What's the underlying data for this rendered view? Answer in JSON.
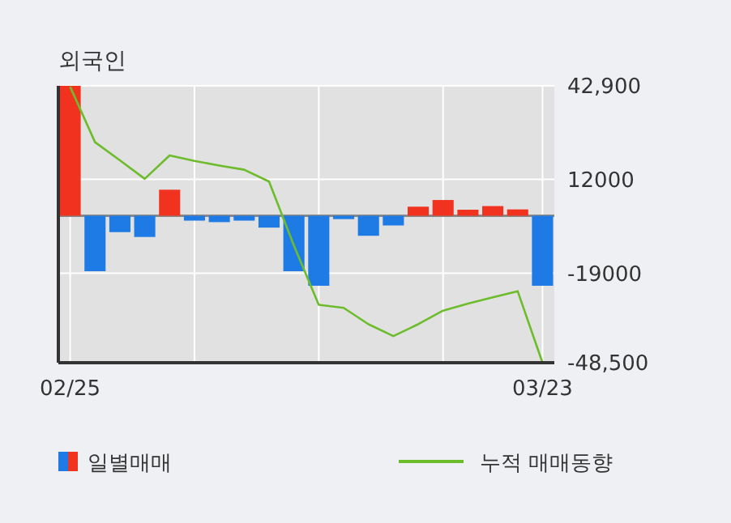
{
  "chart_data": {
    "type": "bar",
    "title": "외국인",
    "categories": [
      "02/25",
      null,
      null,
      null,
      null,
      null,
      null,
      null,
      null,
      null,
      null,
      null,
      null,
      null,
      null,
      null,
      null,
      null,
      null,
      "03/23"
    ],
    "series": [
      {
        "name": "일별매매",
        "colors": [
          "#f0321e",
          "#1e7be6",
          "#1e7be6",
          "#1e7be6",
          "#f0321e",
          "#1e7be6",
          "#1e7be6",
          "#1e7be6",
          "#1e7be6",
          "#1e7be6",
          "#1e7be6",
          "#1e7be6",
          "#1e7be6",
          "#1e7be6",
          "#f0321e",
          "#f0321e",
          "#f0321e",
          "#f0321e",
          "#f0321e",
          "#1e7be6"
        ],
        "values": [
          42900,
          -18300,
          -5400,
          -7000,
          8600,
          -1600,
          -2100,
          -1600,
          -3900,
          -18300,
          -23100,
          -1100,
          -6600,
          -3200,
          3000,
          5200,
          2000,
          3200,
          2100,
          -23100
        ]
      },
      {
        "name": "누적 매매동향",
        "type": "line",
        "color": "#6cbc2c",
        "values": [
          42600,
          24300,
          18300,
          12200,
          19900,
          18100,
          16600,
          15200,
          11300,
          -9800,
          -29400,
          -30400,
          -35800,
          -39700,
          -35800,
          -31300,
          -29000,
          -26900,
          -24900,
          -48500
        ]
      }
    ],
    "ylim": [
      -48500,
      42900
    ],
    "yticks": [
      {
        "value": 42900,
        "label": "42,900"
      },
      12000,
      -19000,
      {
        "value": -48500,
        "label": "-48,500"
      }
    ],
    "grid": true,
    "legend": "bottom"
  }
}
